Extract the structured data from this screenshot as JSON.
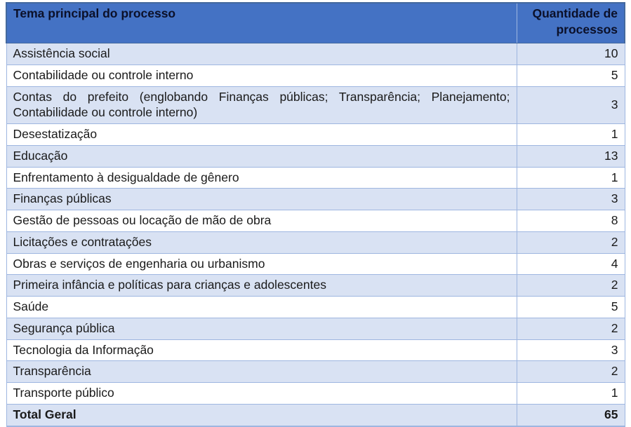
{
  "table": {
    "columns": [
      {
        "id": "tema",
        "label": "Tema principal do processo"
      },
      {
        "id": "quantidade",
        "label": "Quantidade de processos"
      }
    ],
    "rows": [
      {
        "tema": "Assistência social",
        "quantidade": 10
      },
      {
        "tema": "Contabilidade ou controle interno",
        "quantidade": 5
      },
      {
        "tema": "Contas do prefeito (englobando Finanças públicas; Transparência; Planeja­mento; Contabilidade ou controle interno)",
        "quantidade": 3
      },
      {
        "tema": "Desestatização",
        "quantidade": 1
      },
      {
        "tema": "Educação",
        "quantidade": 13
      },
      {
        "tema": "Enfrentamento à desigualdade de gênero",
        "quantidade": 1
      },
      {
        "tema": "Finanças públicas",
        "quantidade": 3
      },
      {
        "tema": "Gestão de pessoas ou locação de mão de obra",
        "quantidade": 8
      },
      {
        "tema": "Licitações e contratações",
        "quantidade": 2
      },
      {
        "tema": "Obras e serviços de engenharia ou urbanismo",
        "quantidade": 4
      },
      {
        "tema": "Primeira infância e políticas para crianças e adolescentes",
        "quantidade": 2
      },
      {
        "tema": "Saúde",
        "quantidade": 5
      },
      {
        "tema": "Segurança pública",
        "quantidade": 2
      },
      {
        "tema": "Tecnologia da Informação",
        "quantidade": 3
      },
      {
        "tema": "Transparência",
        "quantidade": 2
      },
      {
        "tema": "Transporte público",
        "quantidade": 1
      }
    ],
    "total": {
      "label": "Total Geral",
      "value": 65
    }
  },
  "colors": {
    "header_bg": "#4472C4",
    "header_text": "#0B1029",
    "header_divider": "#7FA6DF",
    "row_alt_bg": "#D9E2F3",
    "row_bg": "#FFFFFF",
    "border": "#9EB6E0",
    "border_dark": "#44699E",
    "text": "#1A1A1A"
  }
}
